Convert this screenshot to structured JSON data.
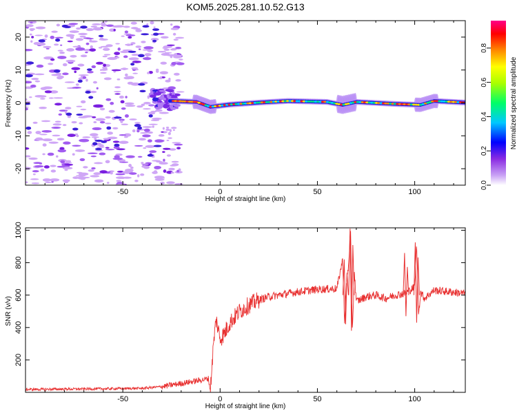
{
  "chart_data": [
    {
      "type": "heatmap",
      "title": "KOM5.2025.281.10.52.G13",
      "xlabel": "Height of straight line (km)",
      "ylabel": "Frequency (Hz)",
      "xlim": [
        -100,
        126
      ],
      "ylim": [
        -25,
        25
      ],
      "xticks": [
        -50,
        0,
        50,
        100
      ],
      "yticks": [
        -20,
        -10,
        0,
        10,
        20
      ],
      "colorbar": {
        "label": "Normalized spectral amplitude",
        "range": [
          0,
          0.96
        ],
        "ticks": [
          0.0,
          0.2,
          0.4,
          0.6,
          0.8
        ]
      },
      "ridge": [
        {
          "x": -24,
          "f": 0.6
        },
        {
          "x": -12,
          "f": 0.3
        },
        {
          "x": -5,
          "f": -1.2
        },
        {
          "x": 5,
          "f": -0.5
        },
        {
          "x": 20,
          "f": 0.1
        },
        {
          "x": 35,
          "f": 0.6
        },
        {
          "x": 55,
          "f": 0.3
        },
        {
          "x": 63,
          "f": -0.6
        },
        {
          "x": 70,
          "f": 0.3
        },
        {
          "x": 90,
          "f": -0.3
        },
        {
          "x": 103,
          "f": -0.6
        },
        {
          "x": 110,
          "f": 0.6
        },
        {
          "x": 126,
          "f": 0.1
        }
      ]
    },
    {
      "type": "line",
      "title": "",
      "xlabel": "Height of straight line (km)",
      "ylabel": "SNR (v/v)",
      "xlim": [
        -100,
        126
      ],
      "ylim": [
        0,
        1015
      ],
      "xticks": [
        -50,
        0,
        50,
        100
      ],
      "yticks": [
        200,
        400,
        600,
        800,
        1000
      ],
      "series": [
        {
          "color": "#e83030",
          "x": [
            -100,
            -80,
            -60,
            -40,
            -30,
            -25,
            -20,
            -15,
            -10,
            -6,
            -5,
            -4,
            -3,
            -2,
            0,
            2,
            5,
            10,
            15,
            20,
            25,
            30,
            40,
            50,
            60,
            63,
            64,
            65,
            66,
            67,
            68,
            69,
            70,
            75,
            80,
            85,
            90,
            95,
            100,
            101,
            102,
            103,
            105,
            110,
            126
          ],
          "y": [
            18,
            20,
            22,
            25,
            35,
            45,
            55,
            65,
            75,
            85,
            10,
            200,
            350,
            450,
            330,
            360,
            430,
            500,
            540,
            570,
            590,
            600,
            620,
            635,
            640,
            820,
            420,
            690,
            780,
            1010,
            380,
            740,
            560,
            590,
            600,
            580,
            600,
            610,
            650,
            920,
            480,
            620,
            580,
            630,
            610
          ]
        }
      ],
      "spikes": [
        {
          "x": 64.5,
          "y": 820,
          "low": 420
        },
        {
          "x": 67.5,
          "y": 1010,
          "low": 380
        },
        {
          "x": 95.5,
          "y": 860,
          "low": 470
        },
        {
          "x": 101,
          "y": 925,
          "low": 430
        }
      ]
    }
  ]
}
